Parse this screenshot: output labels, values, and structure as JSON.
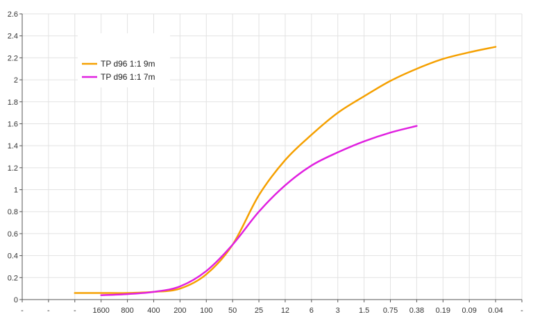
{
  "chart_data": {
    "type": "line",
    "title": "",
    "xlabel": "",
    "ylabel": "",
    "categories": [
      "-",
      "-",
      "-",
      "1600",
      "800",
      "400",
      "200",
      "100",
      "50",
      "25",
      "12",
      "6",
      "3",
      "1.5",
      "0.75",
      "0.38",
      "0.19",
      "0.09",
      "0.04",
      "-"
    ],
    "y_ticks": [
      "0",
      "0.2",
      "0.4",
      "0.6",
      "0.8",
      "1",
      "1.2",
      "1.4",
      "1.6",
      "1.8",
      "2",
      "2.2",
      "2.4",
      "2.6"
    ],
    "ylim": [
      0,
      2.6
    ],
    "grid": true,
    "legend_position": "top-left",
    "series": [
      {
        "name": "TP d96 1:1 9m",
        "color": "#f5a000",
        "points": [
          [
            2,
            0.06
          ],
          [
            3,
            0.06
          ],
          [
            4,
            0.06
          ],
          [
            5,
            0.07
          ],
          [
            6,
            0.1
          ],
          [
            7,
            0.23
          ],
          [
            8,
            0.5
          ],
          [
            9,
            0.95
          ],
          [
            10,
            1.27
          ],
          [
            11,
            1.5
          ],
          [
            12,
            1.7
          ],
          [
            13,
            1.85
          ],
          [
            14,
            1.99
          ],
          [
            15,
            2.1
          ],
          [
            16,
            2.19
          ],
          [
            17,
            2.25
          ],
          [
            18,
            2.3
          ]
        ]
      },
      {
        "name": "TP d96 1:1 7m",
        "color": "#e020e0",
        "points": [
          [
            3,
            0.04
          ],
          [
            4,
            0.05
          ],
          [
            5,
            0.07
          ],
          [
            6,
            0.12
          ],
          [
            7,
            0.26
          ],
          [
            8,
            0.5
          ],
          [
            9,
            0.8
          ],
          [
            10,
            1.04
          ],
          [
            11,
            1.22
          ],
          [
            12,
            1.34
          ],
          [
            13,
            1.44
          ],
          [
            14,
            1.52
          ],
          [
            15,
            1.58
          ]
        ]
      }
    ]
  }
}
